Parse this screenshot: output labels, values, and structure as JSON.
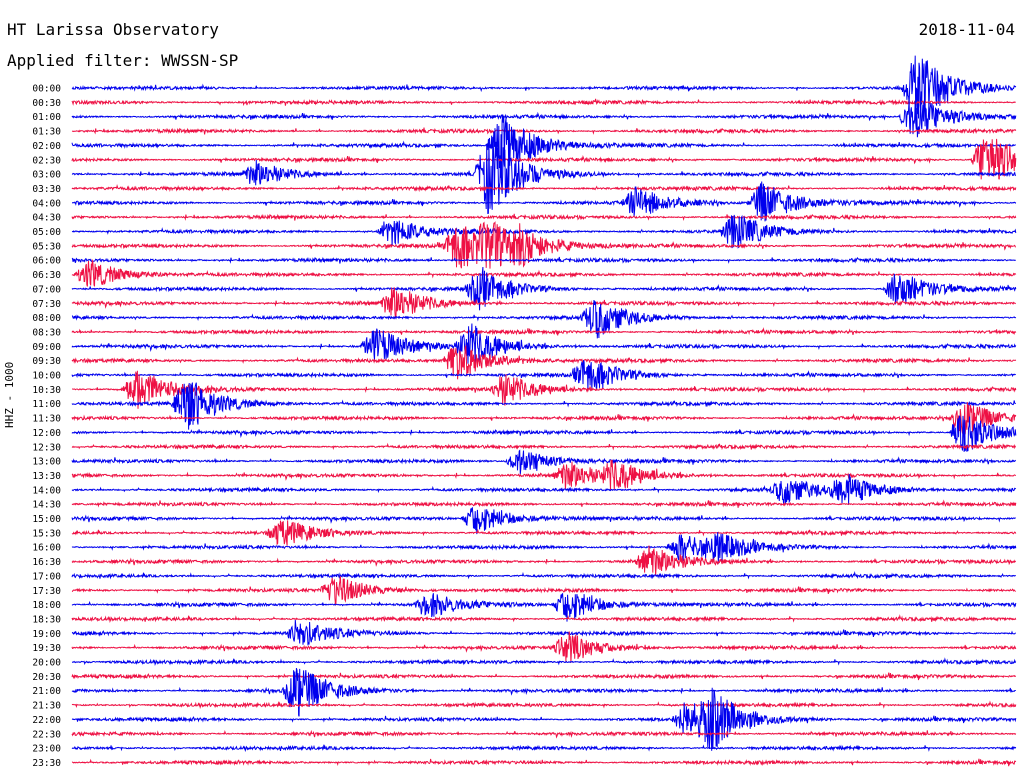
{
  "header": {
    "title": "HT Larissa Observatory",
    "date": "2018-11-04",
    "filter_label": "Applied filter:",
    "filter_value": "WWSSN-SP"
  },
  "channel_label": "HHZ - 1000",
  "colors": {
    "trace_a": "#0000ee",
    "trace_b": "#ee1144",
    "background": "#ffffff"
  },
  "chart_data": {
    "type": "line",
    "title": "",
    "ylabel": "HHZ - 1000",
    "row_labels": [
      "00:00",
      "00:30",
      "01:00",
      "01:30",
      "02:00",
      "02:30",
      "03:00",
      "03:30",
      "04:00",
      "04:30",
      "05:00",
      "05:30",
      "06:00",
      "06:30",
      "07:00",
      "07:30",
      "08:00",
      "08:30",
      "09:00",
      "09:30",
      "10:00",
      "10:30",
      "11:00",
      "11:30",
      "12:00",
      "12:30",
      "13:00",
      "13:30",
      "14:00",
      "14:30",
      "15:00",
      "15:30",
      "16:00",
      "16:30",
      "17:00",
      "17:30",
      "18:00",
      "18:30",
      "19:00",
      "19:30",
      "20:00",
      "20:30",
      "21:00",
      "21:30",
      "22:00",
      "22:30",
      "23:00",
      "23:30"
    ],
    "row_minutes": 30,
    "alternating_colors": [
      "#0000ee",
      "#ee1144"
    ],
    "events": [
      {
        "row": "00:00",
        "minute": 26.5,
        "amp": 2.4
      },
      {
        "row": "01:00",
        "minute": 26.4,
        "amp": 1.6
      },
      {
        "row": "02:00",
        "minute": 13.3,
        "amp": 2.2
      },
      {
        "row": "02:30",
        "minute": 28.7,
        "amp": 2.0
      },
      {
        "row": "03:00",
        "minute": 12.9,
        "amp": 2.6
      },
      {
        "row": "03:00",
        "minute": 5.5,
        "amp": 0.8
      },
      {
        "row": "04:00",
        "minute": 21.6,
        "amp": 1.4
      },
      {
        "row": "04:00",
        "minute": 17.6,
        "amp": 1.0
      },
      {
        "row": "05:00",
        "minute": 20.7,
        "amp": 1.2
      },
      {
        "row": "05:00",
        "minute": 9.8,
        "amp": 0.9
      },
      {
        "row": "05:30",
        "minute": 11.9,
        "amp": 1.6
      },
      {
        "row": "05:30",
        "minute": 12.9,
        "amp": 1.3
      },
      {
        "row": "05:30",
        "minute": 13.9,
        "amp": 0.8
      },
      {
        "row": "06:30",
        "minute": 0.2,
        "amp": 1.0
      },
      {
        "row": "07:00",
        "minute": 25.9,
        "amp": 1.2
      },
      {
        "row": "07:00",
        "minute": 12.6,
        "amp": 1.3
      },
      {
        "row": "07:30",
        "minute": 9.9,
        "amp": 1.1
      },
      {
        "row": "08:00",
        "minute": 16.3,
        "amp": 1.3
      },
      {
        "row": "09:00",
        "minute": 9.3,
        "amp": 1.2
      },
      {
        "row": "09:00",
        "minute": 12.3,
        "amp": 1.4
      },
      {
        "row": "09:30",
        "minute": 11.9,
        "amp": 1.3
      },
      {
        "row": "10:00",
        "minute": 16.0,
        "amp": 1.2
      },
      {
        "row": "10:30",
        "minute": 1.7,
        "amp": 1.3
      },
      {
        "row": "10:30",
        "minute": 13.4,
        "amp": 1.0
      },
      {
        "row": "11:00",
        "minute": 3.3,
        "amp": 1.8
      },
      {
        "row": "11:30",
        "minute": 28.0,
        "amp": 1.2
      },
      {
        "row": "12:00",
        "minute": 28.0,
        "amp": 1.4
      },
      {
        "row": "13:00",
        "minute": 13.9,
        "amp": 0.8
      },
      {
        "row": "13:30",
        "minute": 15.4,
        "amp": 0.9
      },
      {
        "row": "13:30",
        "minute": 16.9,
        "amp": 0.9
      },
      {
        "row": "14:00",
        "minute": 22.3,
        "amp": 0.9
      },
      {
        "row": "14:00",
        "minute": 24.2,
        "amp": 1.0
      },
      {
        "row": "15:00",
        "minute": 12.5,
        "amp": 1.0
      },
      {
        "row": "15:30",
        "minute": 6.3,
        "amp": 0.9
      },
      {
        "row": "16:00",
        "minute": 19.0,
        "amp": 0.9
      },
      {
        "row": "16:00",
        "minute": 20.1,
        "amp": 0.8
      },
      {
        "row": "16:30",
        "minute": 18.0,
        "amp": 1.0
      },
      {
        "row": "17:30",
        "minute": 8.0,
        "amp": 1.0
      },
      {
        "row": "18:00",
        "minute": 15.4,
        "amp": 1.1
      },
      {
        "row": "18:00",
        "minute": 11.0,
        "amp": 0.8
      },
      {
        "row": "19:00",
        "minute": 6.9,
        "amp": 0.9
      },
      {
        "row": "19:30",
        "minute": 15.4,
        "amp": 1.0
      },
      {
        "row": "21:00",
        "minute": 6.8,
        "amp": 1.7
      },
      {
        "row": "22:00",
        "minute": 20.0,
        "amp": 1.5
      },
      {
        "row": "22:00",
        "minute": 19.2,
        "amp": 1.2
      }
    ]
  }
}
